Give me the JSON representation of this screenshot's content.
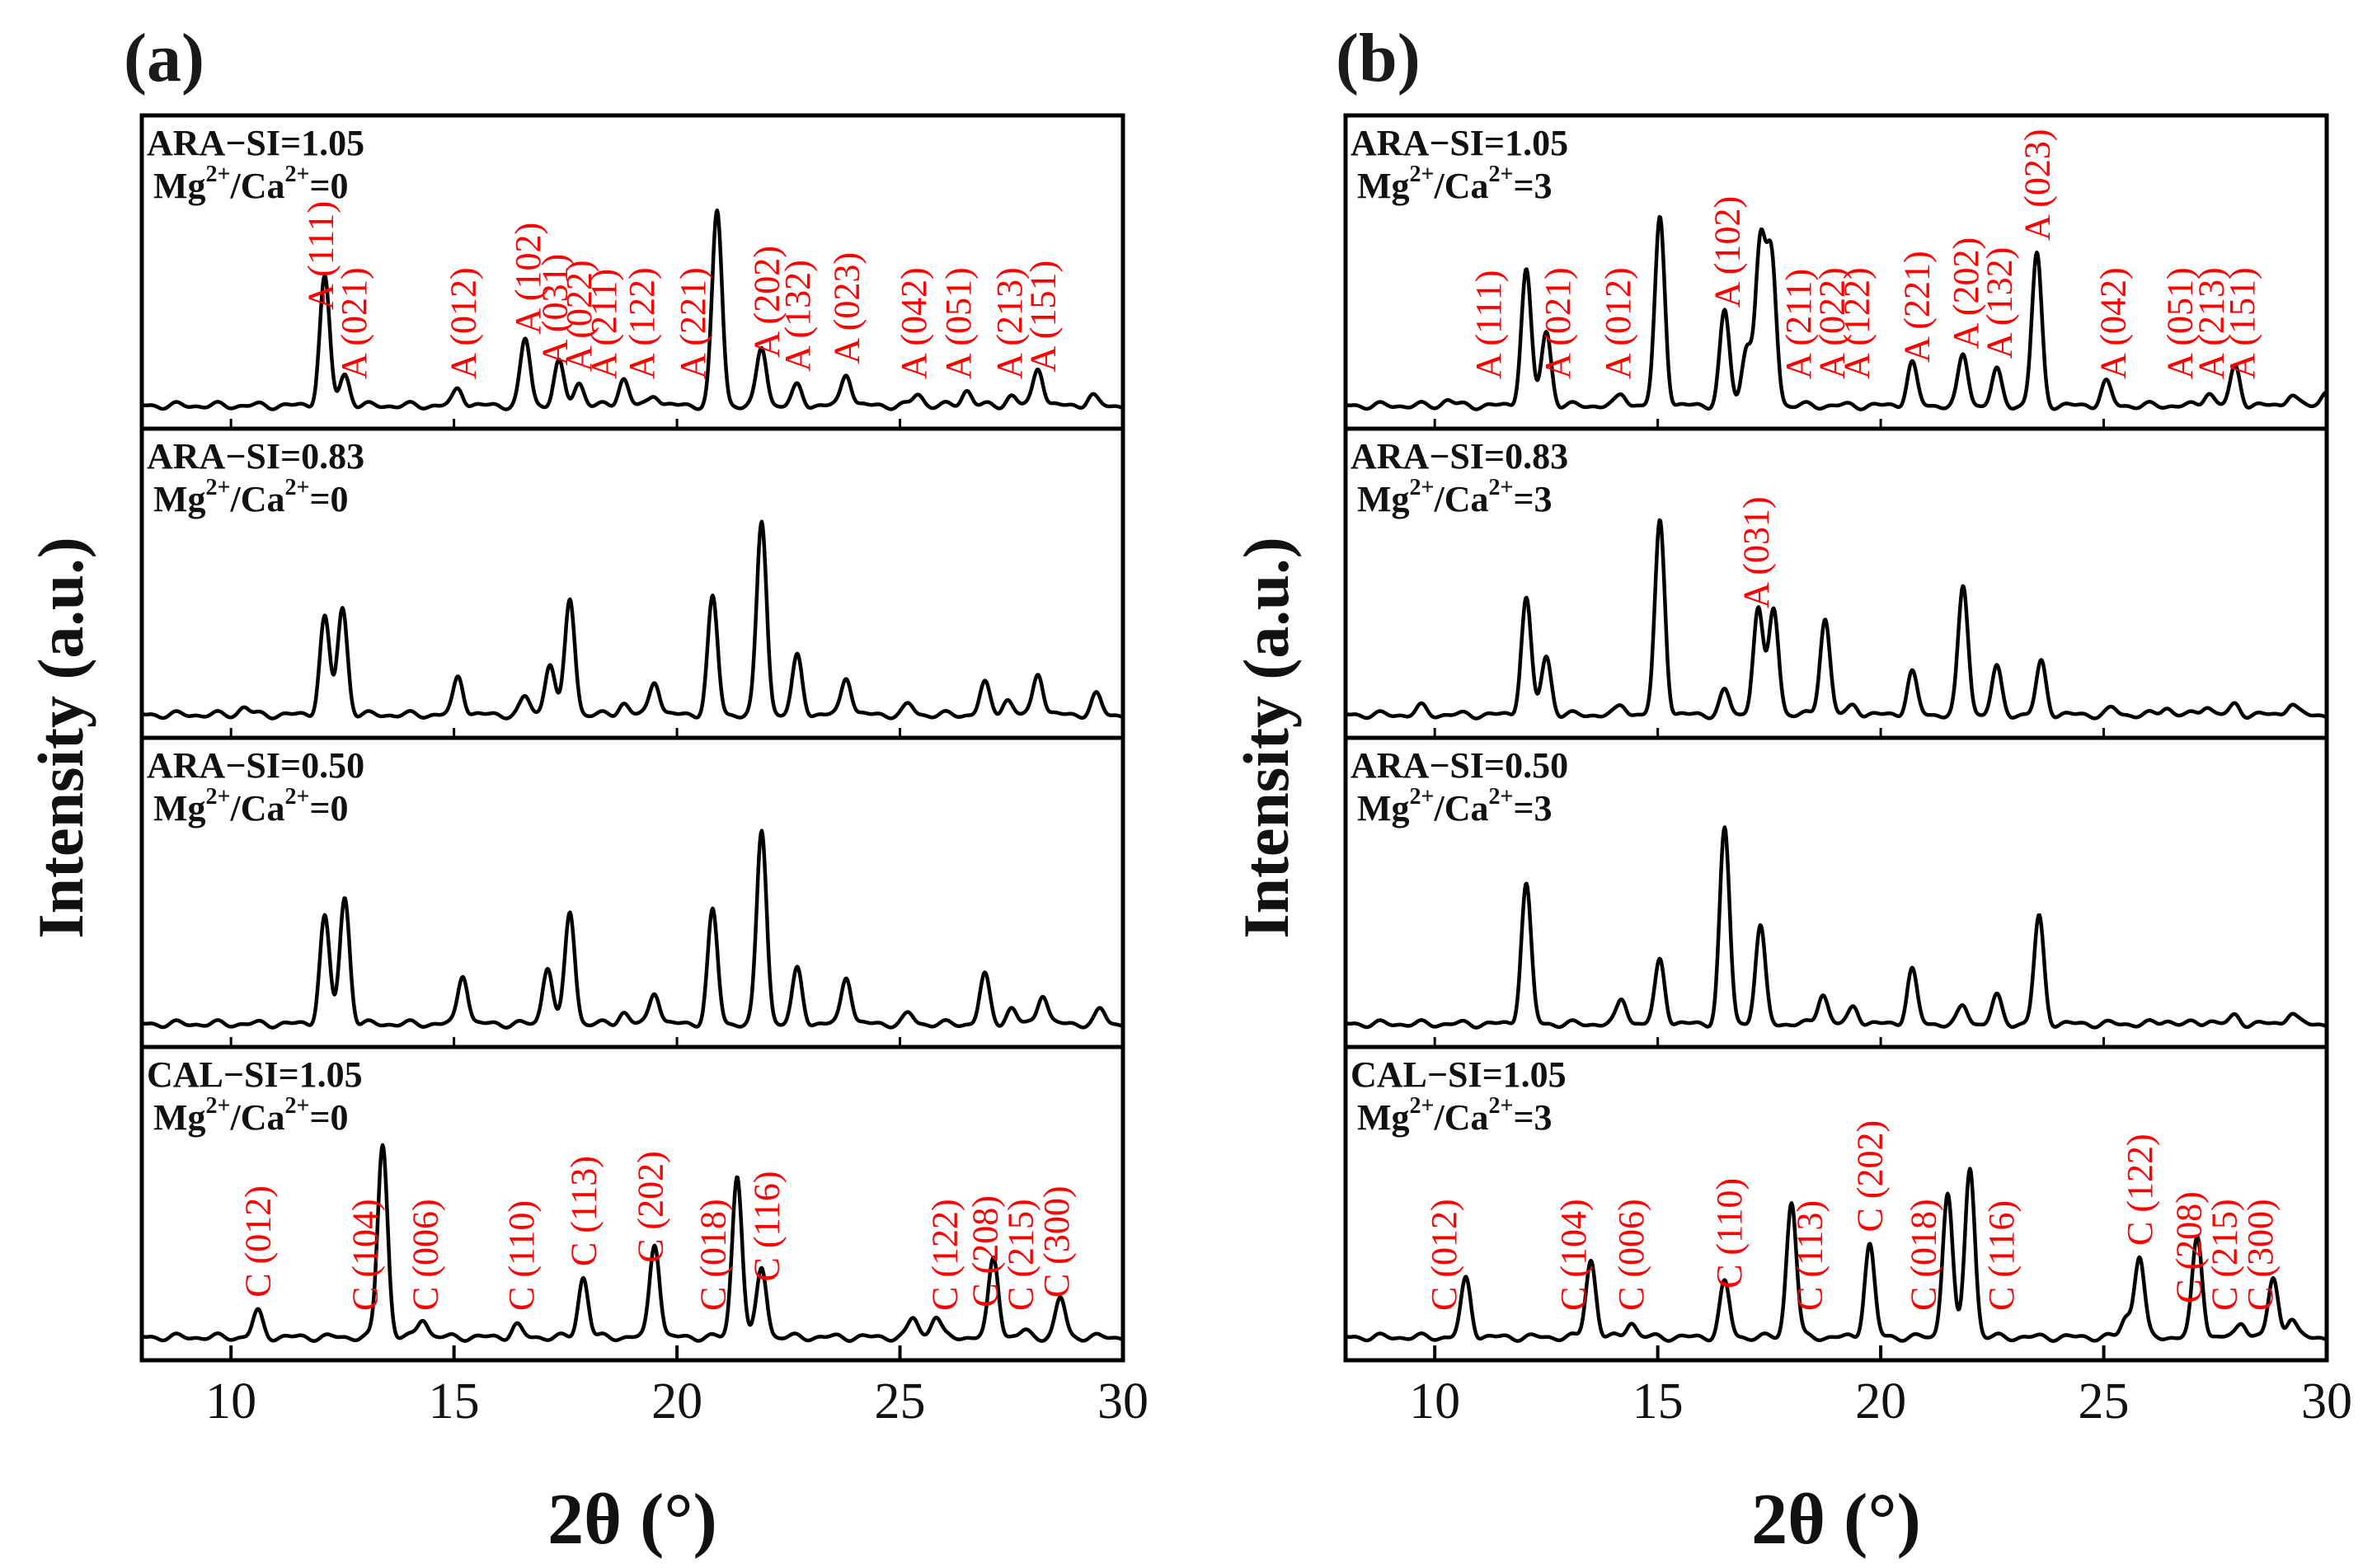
{
  "chart_data": [
    {
      "type": "line",
      "panel_label": "(a)",
      "xlabel": "2θ (°)",
      "ylabel": "Intensity (a.u.)",
      "xlim": [
        8,
        30
      ],
      "xticks": [
        "10",
        "15",
        "20",
        "25",
        "30"
      ],
      "stacked_series": [
        {
          "name": "ARA-SI=1.05",
          "line1": "ARA−SI=1.05",
          "line2": {
            "pre": "Mg",
            "sup1": "2+",
            "mid": "/Ca",
            "sup2": "2+",
            "post": "=0"
          },
          "peaks": [
            [
              12.1,
              0.66
            ],
            [
              12.55,
              0.16
            ],
            [
              15.1,
              0.09
            ],
            [
              16.6,
              0.34
            ],
            [
              17.35,
              0.22
            ],
            [
              17.8,
              0.12
            ],
            [
              18.8,
              0.14
            ],
            [
              19.5,
              0.06
            ],
            [
              20.9,
              1.0
            ],
            [
              21.9,
              0.3
            ],
            [
              22.7,
              0.1
            ],
            [
              23.8,
              0.17
            ],
            [
              25.4,
              0.06
            ],
            [
              26.5,
              0.08
            ],
            [
              27.5,
              0.05
            ],
            [
              28.1,
              0.2
            ],
            [
              29.3,
              0.05
            ]
          ],
          "annotations": [
            {
              "label": "A (111)",
              "x": 12.0
            },
            {
              "label": "A (021)",
              "x": 12.75
            },
            {
              "label": "A (012)",
              "x": 15.2
            },
            {
              "label": "A (102)",
              "x": 16.65
            },
            {
              "label": "A (031)",
              "x": 17.25
            },
            {
              "label": "A (022)",
              "x": 17.8
            },
            {
              "label": "A (211)",
              "x": 18.35
            },
            {
              "label": "A (122)",
              "x": 19.2
            },
            {
              "label": "A (221)",
              "x": 20.35
            },
            {
              "label": "A (202)",
              "x": 22.0
            },
            {
              "label": "A (132)",
              "x": 22.7
            },
            {
              "label": "A (023)",
              "x": 23.8
            },
            {
              "label": "A (042)",
              "x": 25.3
            },
            {
              "label": "A (051)",
              "x": 26.3
            },
            {
              "label": "A (213)",
              "x": 27.45
            },
            {
              "label": "A (151)",
              "x": 28.2
            }
          ]
        },
        {
          "name": "ARA-SI=0.83",
          "line1": "ARA−SI=0.83",
          "line2": {
            "pre": "Mg",
            "sup1": "2+",
            "mid": "/Ca",
            "sup2": "2+",
            "post": "=0"
          },
          "peaks": [
            [
              10.3,
              0.04
            ],
            [
              12.1,
              0.5
            ],
            [
              12.5,
              0.55
            ],
            [
              15.1,
              0.2
            ],
            [
              16.6,
              0.09
            ],
            [
              17.15,
              0.27
            ],
            [
              17.6,
              0.6
            ],
            [
              18.8,
              0.06
            ],
            [
              19.5,
              0.18
            ],
            [
              20.8,
              0.6
            ],
            [
              21.9,
              1.0
            ],
            [
              22.7,
              0.3
            ],
            [
              23.8,
              0.2
            ],
            [
              25.2,
              0.05
            ],
            [
              26.9,
              0.16
            ],
            [
              27.4,
              0.08
            ],
            [
              28.1,
              0.22
            ],
            [
              29.4,
              0.1
            ]
          ],
          "annotations": []
        },
        {
          "name": "ARA-SI=0.50",
          "line1": "ARA−SI=0.50",
          "line2": {
            "pre": "Mg",
            "sup1": "2+",
            "mid": "/Ca",
            "sup2": "2+",
            "post": "=0"
          },
          "peaks": [
            [
              12.1,
              0.55
            ],
            [
              12.55,
              0.65
            ],
            [
              15.2,
              0.26
            ],
            [
              17.1,
              0.3
            ],
            [
              17.6,
              0.58
            ],
            [
              18.8,
              0.06
            ],
            [
              19.5,
              0.17
            ],
            [
              20.8,
              0.58
            ],
            [
              21.9,
              1.0
            ],
            [
              22.7,
              0.28
            ],
            [
              23.8,
              0.25
            ],
            [
              25.2,
              0.05
            ],
            [
              26.9,
              0.25
            ],
            [
              27.5,
              0.08
            ],
            [
              28.2,
              0.16
            ],
            [
              29.5,
              0.07
            ]
          ],
          "annotations": []
        },
        {
          "name": "CAL-SI=1.05",
          "line1": "CAL−SI=1.05",
          "line2": {
            "pre": "Mg",
            "sup1": "2+",
            "mid": "/Ca",
            "sup2": "2+",
            "post": "=0"
          },
          "peaks": [
            [
              10.6,
              0.13
            ],
            [
              13.4,
              1.0
            ],
            [
              14.3,
              0.1
            ],
            [
              16.4,
              0.06
            ],
            [
              17.9,
              0.31
            ],
            [
              19.5,
              0.49
            ],
            [
              21.35,
              0.84
            ],
            [
              21.9,
              0.36
            ],
            [
              25.3,
              0.1
            ],
            [
              25.8,
              0.11
            ],
            [
              27.1,
              0.41
            ],
            [
              27.8,
              0.03
            ],
            [
              28.6,
              0.2
            ]
          ],
          "annotations": [
            {
              "label": "C (012)",
              "x": 10.6
            },
            {
              "label": "C (104)",
              "x": 13.0
            },
            {
              "label": "C (006)",
              "x": 14.35
            },
            {
              "label": "C (110)",
              "x": 16.5
            },
            {
              "label": "C (113)",
              "x": 17.9
            },
            {
              "label": "C (202)",
              "x": 19.4
            },
            {
              "label": "C (018)",
              "x": 20.8
            },
            {
              "label": "C (116)",
              "x": 22.0
            },
            {
              "label": "C (122)",
              "x": 26.0
            },
            {
              "label": "C (208)",
              "x": 26.9
            },
            {
              "label": "C (215)",
              "x": 27.7
            },
            {
              "label": "C (300)",
              "x": 28.5
            }
          ]
        }
      ]
    },
    {
      "type": "line",
      "panel_label": "(b)",
      "xlabel": "2θ (°)",
      "ylabel": "Intensity (a.u.)",
      "xlim": [
        8,
        30
      ],
      "xticks": [
        "10",
        "15",
        "20",
        "25",
        "30"
      ],
      "stacked_series": [
        {
          "name": "ARA-SI=1.05",
          "line1": "ARA−SI=1.05",
          "line2": {
            "pre": "Mg",
            "sup1": "2+",
            "mid": "/Ca",
            "sup2": "2+",
            "post": "=3"
          },
          "peaks": [
            [
              10.3,
              0.03
            ],
            [
              12.05,
              0.7
            ],
            [
              12.5,
              0.38
            ],
            [
              14.2,
              0.06
            ],
            [
              15.05,
              0.97
            ],
            [
              16.5,
              0.48
            ],
            [
              17.0,
              0.3
            ],
            [
              17.3,
              0.82
            ],
            [
              17.55,
              0.76
            ],
            [
              20.7,
              0.22
            ],
            [
              21.85,
              0.26
            ],
            [
              22.6,
              0.18
            ],
            [
              23.5,
              0.78
            ],
            [
              25.05,
              0.12
            ],
            [
              27.35,
              0.07
            ],
            [
              27.95,
              0.2
            ],
            [
              29.2,
              0.06
            ],
            [
              30.0,
              0.08
            ]
          ],
          "annotations": [
            {
              "label": "A (111)",
              "x": 11.2
            },
            {
              "label": "A (021)",
              "x": 12.75
            },
            {
              "label": "A (012)",
              "x": 14.1
            },
            {
              "label": "A (102)",
              "x": 16.55
            },
            {
              "label": "A (211)",
              "x": 18.15
            },
            {
              "label": "A (022)",
              "x": 18.9
            },
            {
              "label": "A (122)",
              "x": 19.45
            },
            {
              "label": "A (221)",
              "x": 20.8
            },
            {
              "label": "A (202)",
              "x": 21.9
            },
            {
              "label": "A (132)",
              "x": 22.65
            },
            {
              "label": "A (023)",
              "x": 23.5
            },
            {
              "label": "A (042)",
              "x": 25.2
            },
            {
              "label": "A (051)",
              "x": 26.7
            },
            {
              "label": "A (213)",
              "x": 27.4
            },
            {
              "label": "A (151)",
              "x": 28.1
            }
          ]
        },
        {
          "name": "ARA-SI=0.83",
          "line1": "ARA−SI=0.83",
          "line2": {
            "pre": "Mg",
            "sup1": "2+",
            "mid": "/Ca",
            "sup2": "2+",
            "post": "=3"
          },
          "peaks": [
            [
              9.7,
              0.04
            ],
            [
              12.05,
              0.6
            ],
            [
              12.5,
              0.3
            ],
            [
              14.2,
              0.05
            ],
            [
              15.05,
              1.0
            ],
            [
              16.5,
              0.12
            ],
            [
              17.25,
              0.55
            ],
            [
              17.6,
              0.55
            ],
            [
              18.75,
              0.5
            ],
            [
              19.4,
              0.05
            ],
            [
              20.7,
              0.22
            ],
            [
              21.85,
              0.66
            ],
            [
              22.6,
              0.24
            ],
            [
              23.6,
              0.27
            ],
            [
              25.2,
              0.03
            ],
            [
              26.4,
              0.04
            ],
            [
              27.3,
              0.05
            ],
            [
              27.95,
              0.05
            ],
            [
              29.2,
              0.06
            ]
          ],
          "annotations": [
            {
              "label": "A (031)",
              "x": 17.2
            }
          ]
        },
        {
          "name": "ARA-SI=0.50",
          "line1": "ARA−SI=0.50",
          "line2": {
            "pre": "Mg",
            "sup1": "2+",
            "mid": "/Ca",
            "sup2": "2+",
            "post": "=3"
          },
          "peaks": [
            [
              12.05,
              0.72
            ],
            [
              14.2,
              0.13
            ],
            [
              15.05,
              0.33
            ],
            [
              16.5,
              1.0
            ],
            [
              17.3,
              0.5
            ],
            [
              18.7,
              0.16
            ],
            [
              19.4,
              0.09
            ],
            [
              20.7,
              0.28
            ],
            [
              21.85,
              0.09
            ],
            [
              22.6,
              0.14
            ],
            [
              23.55,
              0.55
            ],
            [
              26.4,
              0.02
            ],
            [
              27.35,
              0.02
            ],
            [
              27.95,
              0.04
            ],
            [
              29.2,
              0.06
            ]
          ],
          "annotations": []
        },
        {
          "name": "CAL-SI=1.05",
          "line1": "CAL−SI=1.05",
          "line2": {
            "pre": "Mg",
            "sup1": "2+",
            "mid": "/Ca",
            "sup2": "2+",
            "post": "=3"
          },
          "peaks": [
            [
              10.7,
              0.3
            ],
            [
              13.5,
              0.4
            ],
            [
              14.4,
              0.08
            ],
            [
              16.5,
              0.28
            ],
            [
              18.0,
              0.7
            ],
            [
              19.75,
              0.48
            ],
            [
              21.5,
              0.75
            ],
            [
              22.0,
              0.88
            ],
            [
              25.5,
              0.1
            ],
            [
              25.8,
              0.42
            ],
            [
              27.1,
              0.52
            ],
            [
              28.1,
              0.08
            ],
            [
              28.8,
              0.3
            ],
            [
              29.2,
              0.1
            ]
          ],
          "annotations": [
            {
              "label": "C (012)",
              "x": 10.2
            },
            {
              "label": "C (104)",
              "x": 13.1
            },
            {
              "label": "C (006)",
              "x": 14.4
            },
            {
              "label": "C (110)",
              "x": 16.6
            },
            {
              "label": "C (113)",
              "x": 18.4
            },
            {
              "label": "C (202)",
              "x": 19.75
            },
            {
              "label": "C (018)",
              "x": 20.95
            },
            {
              "label": "C (116)",
              "x": 22.7
            },
            {
              "label": "C (122)",
              "x": 25.8
            },
            {
              "label": "C (208)",
              "x": 26.9
            },
            {
              "label": "C (215)",
              "x": 27.7
            },
            {
              "label": "C (300)",
              "x": 28.5
            }
          ]
        }
      ]
    }
  ]
}
